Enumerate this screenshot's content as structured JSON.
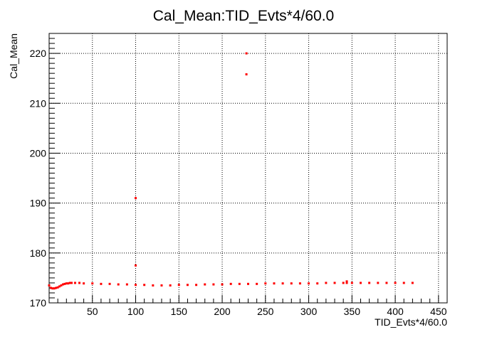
{
  "chart_data": {
    "type": "scatter",
    "title": "Cal_Mean:TID_Evts*4/60.0",
    "xlabel": "TID_Evts*4/60.0",
    "ylabel": "Cal_Mean",
    "xlim": [
      0,
      460
    ],
    "ylim": [
      170,
      224
    ],
    "x_ticks": [
      50,
      100,
      150,
      200,
      250,
      300,
      350,
      400,
      450
    ],
    "y_ticks": [
      170,
      180,
      190,
      200,
      210,
      220
    ],
    "grid": true,
    "marker_color": "#ff0000",
    "series": [
      {
        "x": [
          0,
          2,
          4,
          6,
          8,
          10,
          12,
          14,
          16,
          18,
          20,
          22,
          24,
          26,
          30,
          35,
          40,
          50,
          60,
          70,
          80,
          90,
          100,
          110,
          120,
          130,
          140,
          150,
          160,
          170,
          180,
          190,
          200,
          210,
          220,
          230,
          240,
          250,
          260,
          270,
          280,
          290,
          300,
          310,
          320,
          330,
          340,
          344,
          344,
          350,
          360,
          370,
          380,
          390,
          400,
          410,
          420
        ],
        "y": [
          173.5,
          173.0,
          172.9,
          172.9,
          173.0,
          173.1,
          173.3,
          173.5,
          173.7,
          173.8,
          173.9,
          173.9,
          174.0,
          174.0,
          174.0,
          174.0,
          173.9,
          173.9,
          173.8,
          173.8,
          173.7,
          173.7,
          173.6,
          173.6,
          173.5,
          173.5,
          173.5,
          173.6,
          173.6,
          173.6,
          173.7,
          173.7,
          173.7,
          173.8,
          173.8,
          173.8,
          173.8,
          173.9,
          173.9,
          173.9,
          173.9,
          173.9,
          173.9,
          173.9,
          174.0,
          174.0,
          174.0,
          174.0,
          174.3,
          174.0,
          174.0,
          174.0,
          174.0,
          174.0,
          174.0,
          174.0,
          174.0
        ]
      },
      {
        "x": [
          100,
          100,
          228,
          228
        ],
        "y": [
          191.0,
          177.5,
          220.0,
          215.8
        ]
      }
    ]
  }
}
